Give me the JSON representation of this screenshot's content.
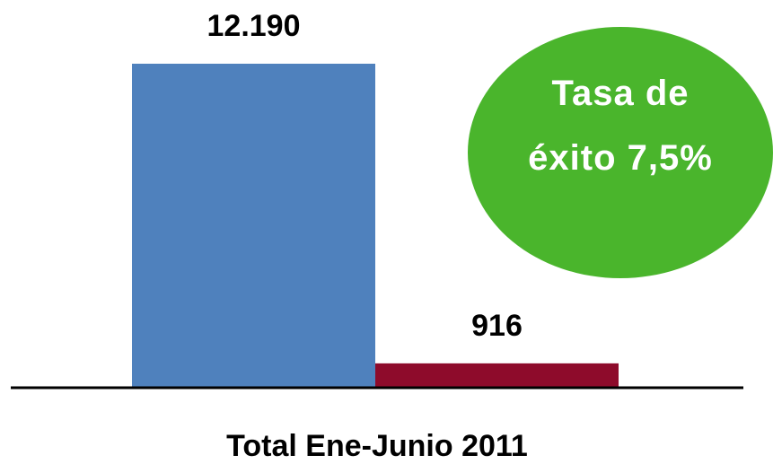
{
  "chart_data": {
    "type": "bar",
    "categories": [
      "Total Ene-Junio 2011"
    ],
    "series": [
      {
        "values": [
          12190
        ],
        "labels": [
          "12.190"
        ],
        "color": "#4f81bd"
      },
      {
        "values": [
          916
        ],
        "labels": [
          "916"
        ],
        "color": "#8e0b2b"
      }
    ],
    "ylim": [
      0,
      12190
    ],
    "grid": false,
    "legend": "none",
    "annotation": {
      "lines": [
        "Tasa de",
        "éxito 7,5%"
      ],
      "color": "#4ab52c",
      "text_color": "#ffffff"
    }
  }
}
